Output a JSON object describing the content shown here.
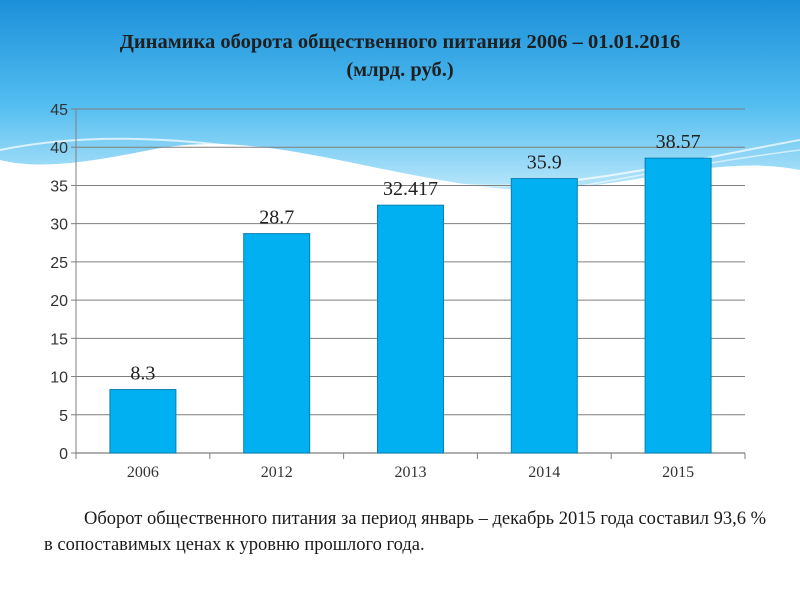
{
  "title_line1": "Динамика  оборота общественного питания 2006 – 01.01.2016",
  "title_line2": "(млрд. руб.)",
  "caption": "Оборот общественного питания за период январь – декабрь  2015 года составил 93,6 % в сопоставимых ценах к уровню прошлого года.",
  "colors": {
    "bar": "#00b0f0",
    "bar_edge": "#0a7fb3",
    "sky_top": "#1e90d8",
    "sky_mid": "#7fd0f5"
  },
  "chart_data": {
    "type": "bar",
    "categories": [
      "2006",
      "2012",
      "2013",
      "2014",
      "2015"
    ],
    "values": [
      8.3,
      28.7,
      32.417,
      35.9,
      38.57
    ],
    "value_labels": [
      "8.3",
      "28.7",
      "32.417",
      "35.9",
      "38.57"
    ],
    "title": "Динамика  оборота общественного питания 2006 – 01.01.2016 (млрд. руб.)",
    "xlabel": "",
    "ylabel": "",
    "ylim": [
      0,
      45
    ],
    "yticks": [
      0,
      5,
      10,
      15,
      20,
      25,
      30,
      35,
      40,
      45
    ],
    "grid": true,
    "legend": "none"
  }
}
